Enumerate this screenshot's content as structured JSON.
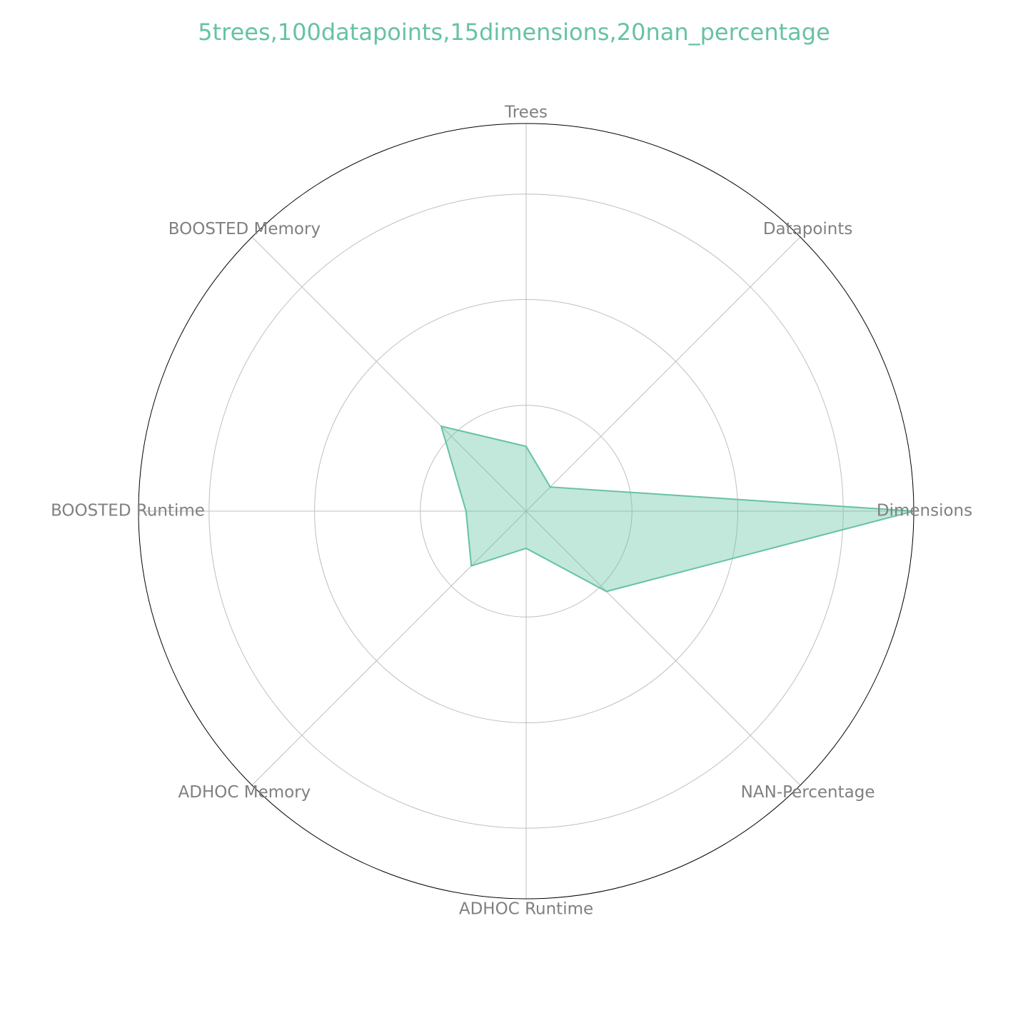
{
  "chart_data": {
    "type": "radar",
    "title": "5trees,100datapoints,15dimensions,20nan_percentage",
    "axes": [
      "Trees",
      "Datapoints",
      "Dimensions",
      "NAN-Percentage",
      "ADHOC Runtime",
      "ADHOC Memory",
      "BOOSTED Runtime",
      "BOOSTED Memory"
    ],
    "values": [
      0.167,
      0.088,
      1.0,
      0.293,
      0.096,
      0.2,
      0.155,
      0.31
    ],
    "rlim": [
      0,
      1
    ],
    "grid": true,
    "color": "#66c2a5"
  }
}
